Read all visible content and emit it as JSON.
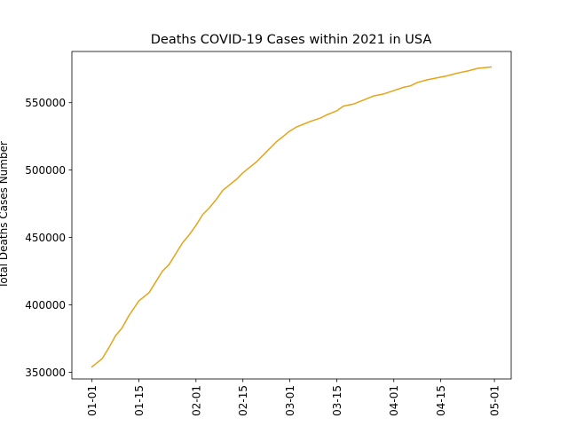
{
  "chart_data": {
    "type": "line",
    "title": "Deaths COVID-19 Cases within 2021 in USA",
    "xlabel": "",
    "ylabel": "Total Deaths Cases Number",
    "x_type": "date",
    "xlim": [
      "2020-12-26",
      "2021-05-06"
    ],
    "ylim": [
      345000,
      588000
    ],
    "x_ticks": [
      {
        "date": "2021-01-01",
        "label": "01-01"
      },
      {
        "date": "2021-01-15",
        "label": "01-15"
      },
      {
        "date": "2021-02-01",
        "label": "02-01"
      },
      {
        "date": "2021-02-15",
        "label": "02-15"
      },
      {
        "date": "2021-03-01",
        "label": "03-01"
      },
      {
        "date": "2021-03-15",
        "label": "03-15"
      },
      {
        "date": "2021-04-01",
        "label": "04-01"
      },
      {
        "date": "2021-04-15",
        "label": "04-15"
      },
      {
        "date": "2021-05-01",
        "label": "05-01"
      }
    ],
    "y_ticks": [
      {
        "value": 350000,
        "label": "350000"
      },
      {
        "value": 400000,
        "label": "400000"
      },
      {
        "value": 450000,
        "label": "450000"
      },
      {
        "value": 500000,
        "label": "500000"
      },
      {
        "value": 550000,
        "label": "550000"
      }
    ],
    "grid": false,
    "series": [
      {
        "color": "#e8a317",
        "x": [
          "2021-01-01",
          "2021-01-04",
          "2021-01-06",
          "2021-01-08",
          "2021-01-10",
          "2021-01-12",
          "2021-01-15",
          "2021-01-18",
          "2021-01-20",
          "2021-01-22",
          "2021-01-24",
          "2021-01-26",
          "2021-01-28",
          "2021-01-30",
          "2021-02-01",
          "2021-02-03",
          "2021-02-05",
          "2021-02-07",
          "2021-02-09",
          "2021-02-11",
          "2021-02-13",
          "2021-02-15",
          "2021-02-17",
          "2021-02-19",
          "2021-02-21",
          "2021-02-23",
          "2021-02-25",
          "2021-02-27",
          "2021-03-01",
          "2021-03-03",
          "2021-03-05",
          "2021-03-07",
          "2021-03-10",
          "2021-03-12",
          "2021-03-15",
          "2021-03-17",
          "2021-03-20",
          "2021-03-23",
          "2021-03-26",
          "2021-03-29",
          "2021-04-01",
          "2021-04-04",
          "2021-04-06",
          "2021-04-08",
          "2021-04-11",
          "2021-04-14",
          "2021-04-17",
          "2021-04-20",
          "2021-04-23",
          "2021-04-26",
          "2021-04-28",
          "2021-04-30"
        ],
        "y": [
          354000,
          360000,
          368000,
          377000,
          383000,
          392000,
          403000,
          409000,
          417000,
          425000,
          430000,
          438000,
          446000,
          452000,
          459000,
          467000,
          472000,
          478000,
          485000,
          489000,
          493000,
          498000,
          502000,
          506000,
          511000,
          516000,
          521000,
          525000,
          529000,
          532000,
          534000,
          536000,
          538500,
          541000,
          544000,
          547500,
          549000,
          552000,
          555000,
          556500,
          559000,
          561500,
          562500,
          565000,
          567000,
          568500,
          570000,
          572000,
          573500,
          575500,
          576000,
          576500
        ]
      }
    ]
  }
}
